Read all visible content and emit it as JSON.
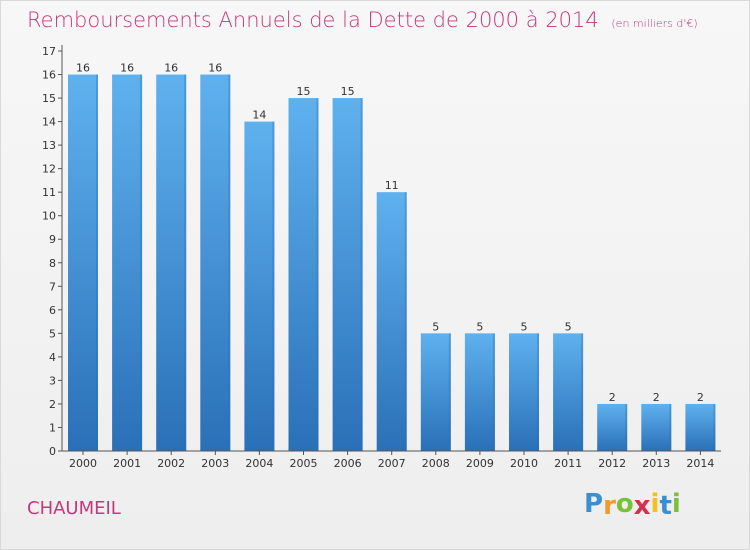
{
  "chart_data": {
    "type": "bar",
    "title": "Remboursements Annuels de la Dette de 2000 à 2014",
    "unit_note": "(en milliers d'€)",
    "categories": [
      "2000",
      "2001",
      "2002",
      "2003",
      "2004",
      "2005",
      "2006",
      "2007",
      "2008",
      "2009",
      "2010",
      "2011",
      "2012",
      "2013",
      "2014"
    ],
    "values": [
      16,
      16,
      16,
      16,
      14,
      15,
      15,
      11,
      5,
      5,
      5,
      5,
      2,
      2,
      2
    ],
    "ylim": [
      0,
      17
    ],
    "yticks": [
      0,
      1,
      2,
      3,
      4,
      5,
      6,
      7,
      8,
      9,
      10,
      11,
      12,
      13,
      14,
      15,
      16,
      17
    ],
    "grid": false,
    "bar_color": "#3f8fd6",
    "bar_color_light": "#5fb1ee",
    "bar_color_dark": "#2a70b8"
  },
  "commune": "CHAUMEIL",
  "logo": {
    "letters": [
      "P",
      "r",
      "o",
      "x",
      "i",
      "t",
      "i"
    ],
    "colors": [
      "#3b8fd0",
      "#f09a2a",
      "#7cbf3b",
      "#d6304f",
      "#f2c21b",
      "#3b8fd0",
      "#7cbf3b"
    ]
  },
  "colors": {
    "title": "#c8377c",
    "axis": "#333333"
  }
}
